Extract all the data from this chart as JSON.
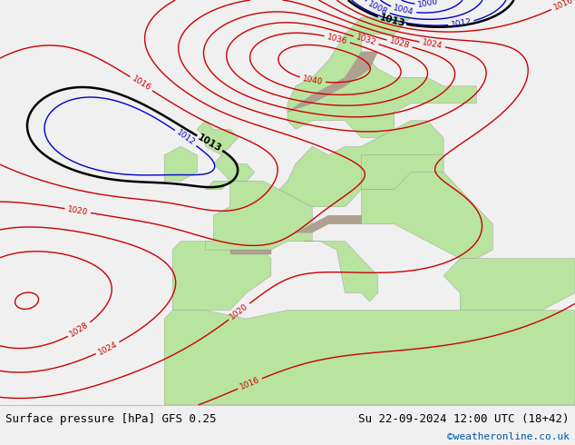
{
  "title_left": "Surface pressure [hPa] GFS 0.25",
  "title_right": "Su 22-09-2024 12:00 UTC (18+42)",
  "credit": "©weatheronline.co.uk",
  "bg_color": "#e8e8e8",
  "land_color": "#b8e4a0",
  "ocean_color": "#e0e0e0",
  "mountain_color": "#b0a090",
  "figsize": [
    6.34,
    4.9
  ],
  "dpi": 100,
  "font_size_title": 9,
  "font_size_credit": 8
}
